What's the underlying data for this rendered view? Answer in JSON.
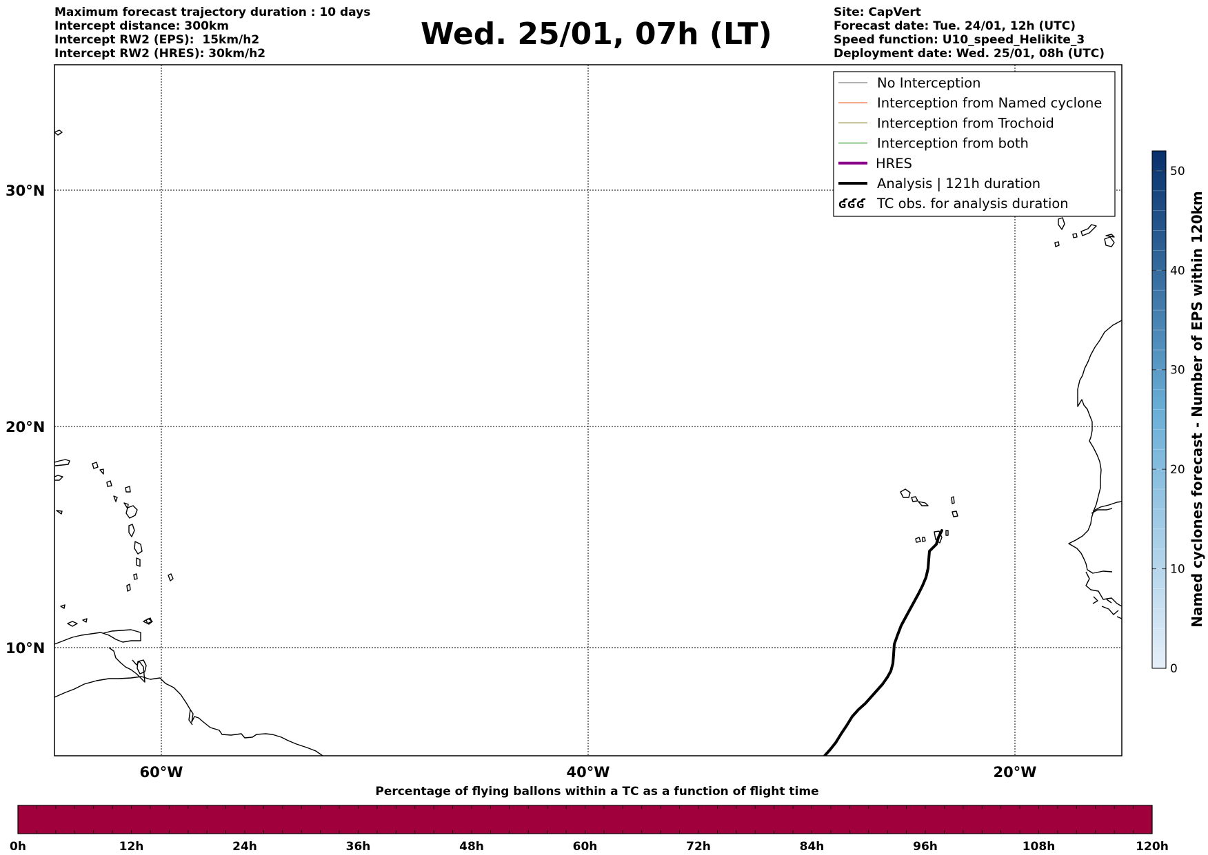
{
  "title": "Wed. 25/01, 07h (LT)",
  "info_left": [
    "Maximum forecast trajectory duration : 10 days",
    "Intercept distance: 300km",
    "Intercept RW2 (EPS):  15km/h2",
    "Intercept RW2 (HRES): 30km/h2"
  ],
  "info_right": [
    "Site: CapVert",
    "Forecast date: Tue. 24/01, 12h (UTC)",
    "Speed function: U10_speed_Helikite_3",
    "Deployment date: Wed. 25/01, 08h (UTC)"
  ],
  "map": {
    "lat_labels": [
      "30°N",
      "20°N",
      "10°N"
    ],
    "lon_labels": [
      "60°W",
      "40°W",
      "20°W"
    ]
  },
  "legend": [
    {
      "label": "No Interception",
      "color": "#808080",
      "style": "thin"
    },
    {
      "label": "Interception from Named cyclone",
      "color": "#f07040",
      "style": "thin"
    },
    {
      "label": "Interception from Trochoid",
      "color": "#8a8a30",
      "style": "thin"
    },
    {
      "label": "Interception from both",
      "color": "#2a9a2a",
      "style": "thin"
    },
    {
      "label": "HRES",
      "color": "#8b008b",
      "style": "thick"
    },
    {
      "label": "Analysis | 121h duration",
      "color": "#000000",
      "style": "thick"
    },
    {
      "label": "TC obs. for analysis duration",
      "color": "#000000",
      "style": "symbol",
      "symbol": "ʛʛʛ"
    }
  ],
  "colorbar_right": {
    "label": "Named cyclones forecast - Number of EPS within 120km",
    "ticks": [
      "0",
      "10",
      "20",
      "30",
      "40",
      "50"
    ],
    "max": 52,
    "color_low": "#e6eff9",
    "color_high": "#08306b"
  },
  "colorbar_bottom": {
    "title": "Percentage of flying ballons within a TC as a function of flight time",
    "ticks": [
      "0h",
      "12h",
      "24h",
      "36h",
      "48h",
      "60h",
      "72h",
      "84h",
      "96h",
      "108h",
      "120h"
    ],
    "fill_color": "#a0003c"
  }
}
